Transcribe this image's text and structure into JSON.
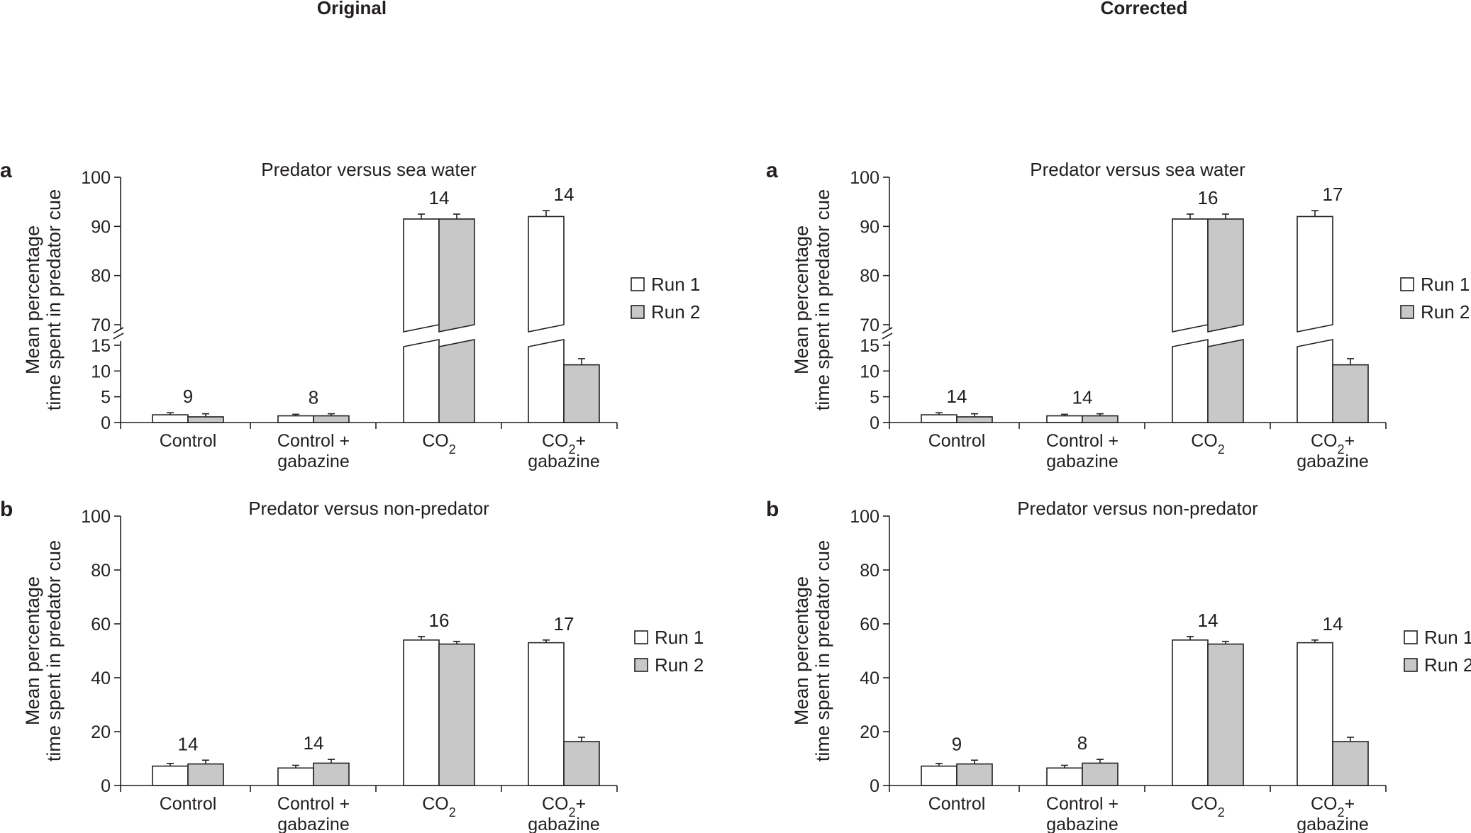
{
  "columns": [
    {
      "title": "Original"
    },
    {
      "title": "Corrected"
    }
  ],
  "legend": {
    "run1": "Run 1",
    "run2": "Run 2"
  },
  "colors": {
    "run1": "#ffffff",
    "run2": "#c8c8c8",
    "stroke": "#231f20"
  },
  "chart_data": [
    {
      "id": "original-a",
      "type": "bar",
      "panel": "a",
      "column": "Original",
      "title": "Predator versus sea water",
      "ylabel": [
        "Mean percentage",
        "time spent in predator cue"
      ],
      "xlabel": "",
      "ylim": [
        0,
        100
      ],
      "axis_break": [
        15,
        70
      ],
      "yticks_low": [
        0,
        5,
        10,
        15
      ],
      "yticks_high": [
        70,
        80,
        90,
        100
      ],
      "categories": [
        "Control",
        "Control + gabazine",
        "CO2",
        "CO2+ gabazine"
      ],
      "category_lines": [
        [
          "Control"
        ],
        [
          "Control +",
          "gabazine"
        ],
        [
          "CO",
          "2",
          ""
        ],
        [
          "CO",
          "2",
          "+",
          "gabazine"
        ]
      ],
      "series": [
        {
          "name": "Run 1",
          "values": [
            1.5,
            1.3,
            91.5,
            92
          ],
          "errors": [
            0.4,
            0.3,
            1.0,
            1.2
          ]
        },
        {
          "name": "Run 2",
          "values": [
            1.1,
            1.3,
            91.5,
            11.2
          ],
          "errors": [
            0.6,
            0.4,
            1.0,
            1.2
          ]
        }
      ],
      "n_labels": [
        "9",
        "8",
        "14",
        "14"
      ],
      "legend_position": "right"
    },
    {
      "id": "original-b",
      "type": "bar",
      "panel": "b",
      "column": "Original",
      "title": "Predator versus non-predator",
      "ylabel": [
        "Mean percentage",
        "time spent in predator cue"
      ],
      "xlabel": "",
      "ylim": [
        0,
        100
      ],
      "yticks": [
        0,
        20,
        40,
        60,
        80,
        100
      ],
      "categories": [
        "Control",
        "Control + gabazine",
        "CO2",
        "CO2+ gabazine"
      ],
      "category_lines": [
        [
          "Control"
        ],
        [
          "Control +",
          "gabazine"
        ],
        [
          "CO",
          "2",
          ""
        ],
        [
          "CO",
          "2",
          "+",
          "gabazine"
        ]
      ],
      "series": [
        {
          "name": "Run 1",
          "values": [
            7.2,
            6.5,
            54,
            53
          ],
          "errors": [
            1.0,
            1.0,
            1.3,
            1.0
          ]
        },
        {
          "name": "Run 2",
          "values": [
            8.0,
            8.3,
            52.5,
            16.3
          ],
          "errors": [
            1.4,
            1.4,
            1.0,
            1.6
          ]
        }
      ],
      "n_labels": [
        "14",
        "14",
        "16",
        "17"
      ],
      "legend_position": "right"
    },
    {
      "id": "corrected-a",
      "type": "bar",
      "panel": "a",
      "column": "Corrected",
      "title": "Predator versus sea water",
      "ylabel": [
        "Mean percentage",
        "time spent in predator cue"
      ],
      "xlabel": "",
      "ylim": [
        0,
        100
      ],
      "axis_break": [
        15,
        70
      ],
      "yticks_low": [
        0,
        5,
        10,
        15
      ],
      "yticks_high": [
        70,
        80,
        90,
        100
      ],
      "categories": [
        "Control",
        "Control + gabazine",
        "CO2",
        "CO2+ gabazine"
      ],
      "category_lines": [
        [
          "Control"
        ],
        [
          "Control +",
          "gabazine"
        ],
        [
          "CO",
          "2",
          ""
        ],
        [
          "CO",
          "2",
          "+",
          "gabazine"
        ]
      ],
      "series": [
        {
          "name": "Run 1",
          "values": [
            1.5,
            1.3,
            91.5,
            92
          ],
          "errors": [
            0.4,
            0.3,
            1.0,
            1.2
          ]
        },
        {
          "name": "Run 2",
          "values": [
            1.1,
            1.3,
            91.5,
            11.2
          ],
          "errors": [
            0.6,
            0.4,
            1.0,
            1.2
          ]
        }
      ],
      "n_labels": [
        "14",
        "14",
        "16",
        "17"
      ],
      "legend_position": "right"
    },
    {
      "id": "corrected-b",
      "type": "bar",
      "panel": "b",
      "column": "Corrected",
      "title": "Predator versus non-predator",
      "ylabel": [
        "Mean percentage",
        "time spent in predator cue"
      ],
      "xlabel": "",
      "ylim": [
        0,
        100
      ],
      "yticks": [
        0,
        20,
        40,
        60,
        80,
        100
      ],
      "categories": [
        "Control",
        "Control + gabazine",
        "CO2",
        "CO2+ gabazine"
      ],
      "category_lines": [
        [
          "Control"
        ],
        [
          "Control +",
          "gabazine"
        ],
        [
          "CO",
          "2",
          ""
        ],
        [
          "CO",
          "2",
          "+",
          "gabazine"
        ]
      ],
      "series": [
        {
          "name": "Run 1",
          "values": [
            7.2,
            6.5,
            54,
            53
          ],
          "errors": [
            1.0,
            1.0,
            1.3,
            1.0
          ]
        },
        {
          "name": "Run 2",
          "values": [
            8.0,
            8.3,
            52.5,
            16.3
          ],
          "errors": [
            1.4,
            1.4,
            1.0,
            1.6
          ]
        }
      ],
      "n_labels": [
        "9",
        "8",
        "14",
        "14"
      ],
      "legend_position": "right"
    }
  ]
}
